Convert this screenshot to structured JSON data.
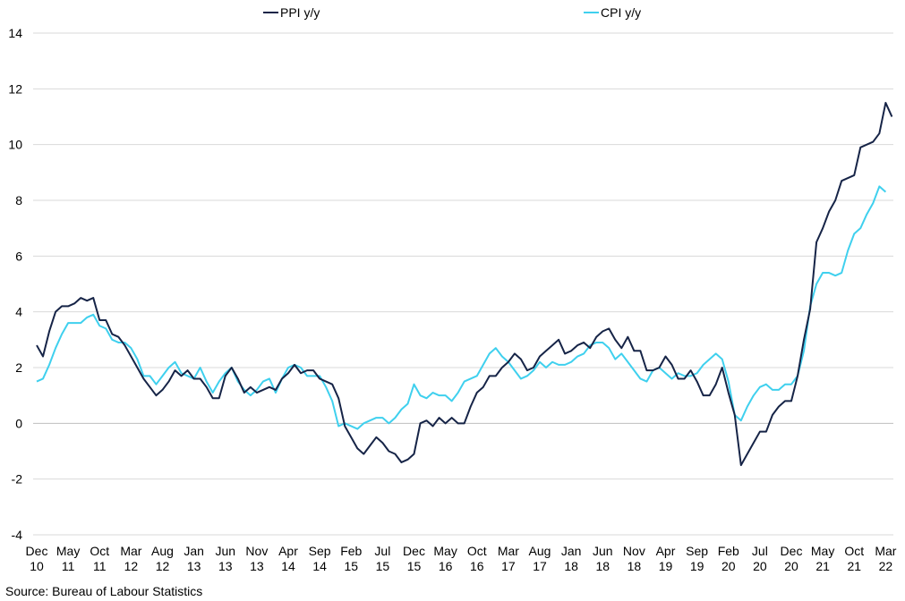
{
  "chart_data": {
    "type": "line",
    "title": "",
    "xlabel": "",
    "ylabel": "",
    "ylim": [
      -4,
      14
    ],
    "yticks": [
      -4,
      -2,
      0,
      2,
      4,
      6,
      8,
      10,
      12,
      14
    ],
    "grid": "horizontal",
    "legend_position": "top",
    "x_start": "Dec 2010",
    "x_end": "Apr 2022",
    "xtick_labels": [
      {
        "month": "Dec",
        "year": "10"
      },
      {
        "month": "May",
        "year": "11"
      },
      {
        "month": "Oct",
        "year": "11"
      },
      {
        "month": "Mar",
        "year": "12"
      },
      {
        "month": "Aug",
        "year": "12"
      },
      {
        "month": "Jan",
        "year": "13"
      },
      {
        "month": "Jun",
        "year": "13"
      },
      {
        "month": "Nov",
        "year": "13"
      },
      {
        "month": "Apr",
        "year": "14"
      },
      {
        "month": "Sep",
        "year": "14"
      },
      {
        "month": "Feb",
        "year": "15"
      },
      {
        "month": "Jul",
        "year": "15"
      },
      {
        "month": "Dec",
        "year": "15"
      },
      {
        "month": "May",
        "year": "16"
      },
      {
        "month": "Oct",
        "year": "16"
      },
      {
        "month": "Mar",
        "year": "17"
      },
      {
        "month": "Aug",
        "year": "17"
      },
      {
        "month": "Jan",
        "year": "18"
      },
      {
        "month": "Jun",
        "year": "18"
      },
      {
        "month": "Nov",
        "year": "18"
      },
      {
        "month": "Apr",
        "year": "19"
      },
      {
        "month": "Sep",
        "year": "19"
      },
      {
        "month": "Feb",
        "year": "20"
      },
      {
        "month": "Jul",
        "year": "20"
      },
      {
        "month": "Dec",
        "year": "20"
      },
      {
        "month": "May",
        "year": "21"
      },
      {
        "month": "Oct",
        "year": "21"
      },
      {
        "month": "Mar",
        "year": "22"
      }
    ],
    "series": [
      {
        "name": "PPI y/y",
        "color": "#162447",
        "values": [
          2.8,
          2.4,
          3.3,
          4.0,
          4.2,
          4.2,
          4.3,
          4.5,
          4.4,
          4.5,
          3.7,
          3.7,
          3.2,
          3.1,
          2.8,
          2.4,
          2.0,
          1.6,
          1.3,
          1.0,
          1.2,
          1.5,
          1.9,
          1.7,
          1.9,
          1.6,
          1.6,
          1.3,
          0.9,
          0.9,
          1.7,
          2.0,
          1.6,
          1.1,
          1.3,
          1.1,
          1.2,
          1.3,
          1.2,
          1.6,
          1.8,
          2.1,
          1.8,
          1.9,
          1.9,
          1.6,
          1.5,
          1.4,
          0.9,
          -0.1,
          -0.5,
          -0.9,
          -1.1,
          -0.8,
          -0.5,
          -0.7,
          -1.0,
          -1.1,
          -1.4,
          -1.3,
          -1.1,
          0.0,
          0.1,
          -0.1,
          0.2,
          0.0,
          0.2,
          0.0,
          0.0,
          0.6,
          1.1,
          1.3,
          1.7,
          1.7,
          2.0,
          2.2,
          2.5,
          2.3,
          1.9,
          2.0,
          2.4,
          2.6,
          2.8,
          3.0,
          2.5,
          2.6,
          2.8,
          2.9,
          2.7,
          3.1,
          3.3,
          3.4,
          3.0,
          2.7,
          3.1,
          2.6,
          2.6,
          1.9,
          1.9,
          2.0,
          2.4,
          2.1,
          1.6,
          1.6,
          1.9,
          1.5,
          1.0,
          1.0,
          1.4,
          2.0,
          1.1,
          0.3,
          -1.5,
          -1.1,
          -0.7,
          -0.3,
          -0.3,
          0.3,
          0.6,
          0.8,
          0.8,
          1.7,
          3.0,
          4.1,
          6.5,
          7.0,
          7.6,
          8.0,
          8.7,
          8.8,
          8.9,
          9.9,
          10.0,
          10.1,
          10.4,
          11.5,
          11.0
        ]
      },
      {
        "name": "CPI y/y",
        "color": "#3fd0ee",
        "values": [
          1.5,
          1.6,
          2.1,
          2.7,
          3.2,
          3.6,
          3.6,
          3.6,
          3.8,
          3.9,
          3.5,
          3.4,
          3.0,
          2.9,
          2.9,
          2.7,
          2.3,
          1.7,
          1.7,
          1.4,
          1.7,
          2.0,
          2.2,
          1.8,
          1.7,
          1.6,
          2.0,
          1.5,
          1.1,
          1.5,
          1.8,
          2.0,
          1.5,
          1.2,
          1.0,
          1.2,
          1.5,
          1.6,
          1.1,
          1.6,
          2.0,
          2.1,
          2.0,
          1.7,
          1.7,
          1.7,
          1.3,
          0.8,
          -0.1,
          0.0,
          -0.1,
          -0.2,
          0.0,
          0.1,
          0.2,
          0.2,
          0.0,
          0.2,
          0.5,
          0.7,
          1.4,
          1.0,
          0.9,
          1.1,
          1.0,
          1.0,
          0.8,
          1.1,
          1.5,
          1.6,
          1.7,
          2.1,
          2.5,
          2.7,
          2.4,
          2.2,
          1.9,
          1.6,
          1.7,
          1.9,
          2.2,
          2.0,
          2.2,
          2.1,
          2.1,
          2.2,
          2.4,
          2.5,
          2.8,
          2.9,
          2.9,
          2.7,
          2.3,
          2.5,
          2.2,
          1.9,
          1.6,
          1.5,
          1.9,
          2.0,
          1.8,
          1.6,
          1.8,
          1.7,
          1.7,
          1.8,
          2.1,
          2.3,
          2.5,
          2.3,
          1.5,
          0.3,
          0.1,
          0.6,
          1.0,
          1.3,
          1.4,
          1.2,
          1.2,
          1.4,
          1.4,
          1.7,
          2.6,
          4.2,
          5.0,
          5.4,
          5.4,
          5.3,
          5.4,
          6.2,
          6.8,
          7.0,
          7.5,
          7.9,
          8.5,
          8.3
        ]
      }
    ]
  },
  "legend": {
    "items": [
      {
        "label": "PPI y/y"
      },
      {
        "label": "CPI y/y"
      }
    ]
  },
  "source": "Source: Bureau of Labour Statistics"
}
